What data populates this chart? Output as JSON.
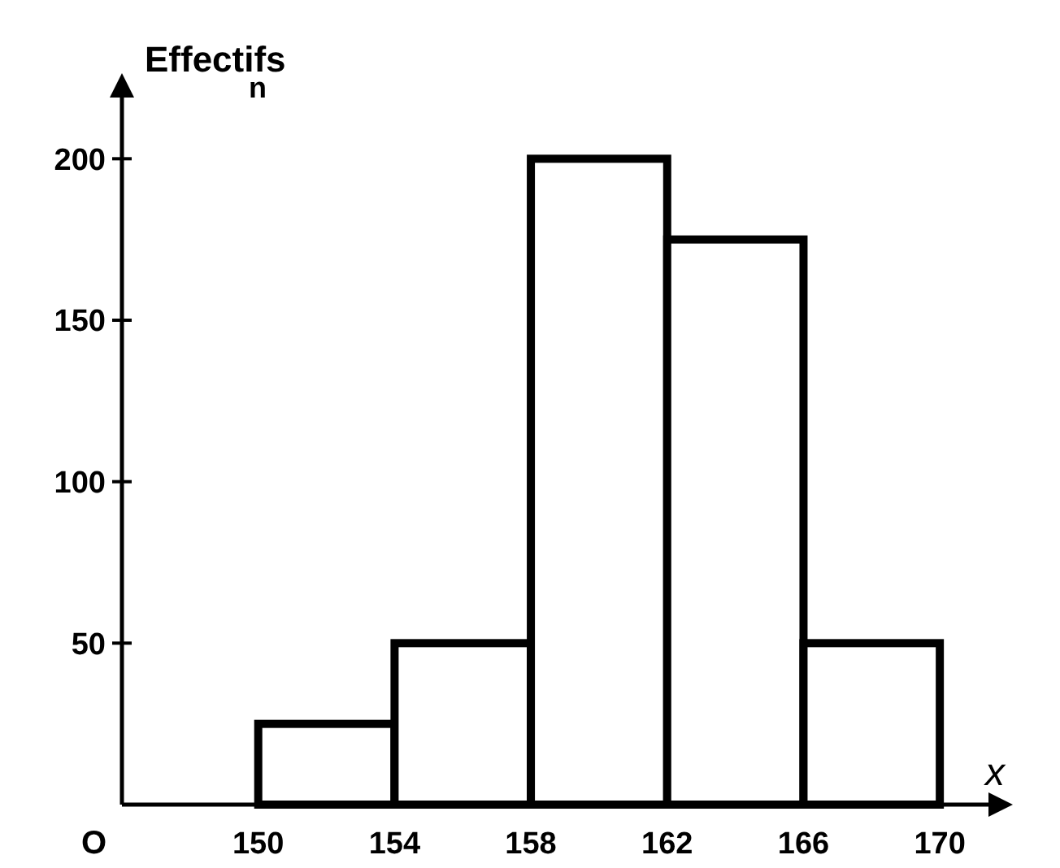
{
  "chart_data": {
    "type": "histogram",
    "ylabel": "Effectifs",
    "xlabel": "x",
    "annotations": [
      "n",
      "O"
    ],
    "bins": [
      150,
      154,
      158,
      162,
      166,
      170
    ],
    "values": [
      25,
      50,
      200,
      175,
      50
    ],
    "color": "#000000",
    "xlim": [
      146,
      172
    ],
    "ylim": [
      0,
      225
    ],
    "xticks": [
      150,
      154,
      158,
      162,
      166,
      170
    ],
    "yticks": [
      50,
      100,
      150,
      200
    ],
    "grid": false
  }
}
